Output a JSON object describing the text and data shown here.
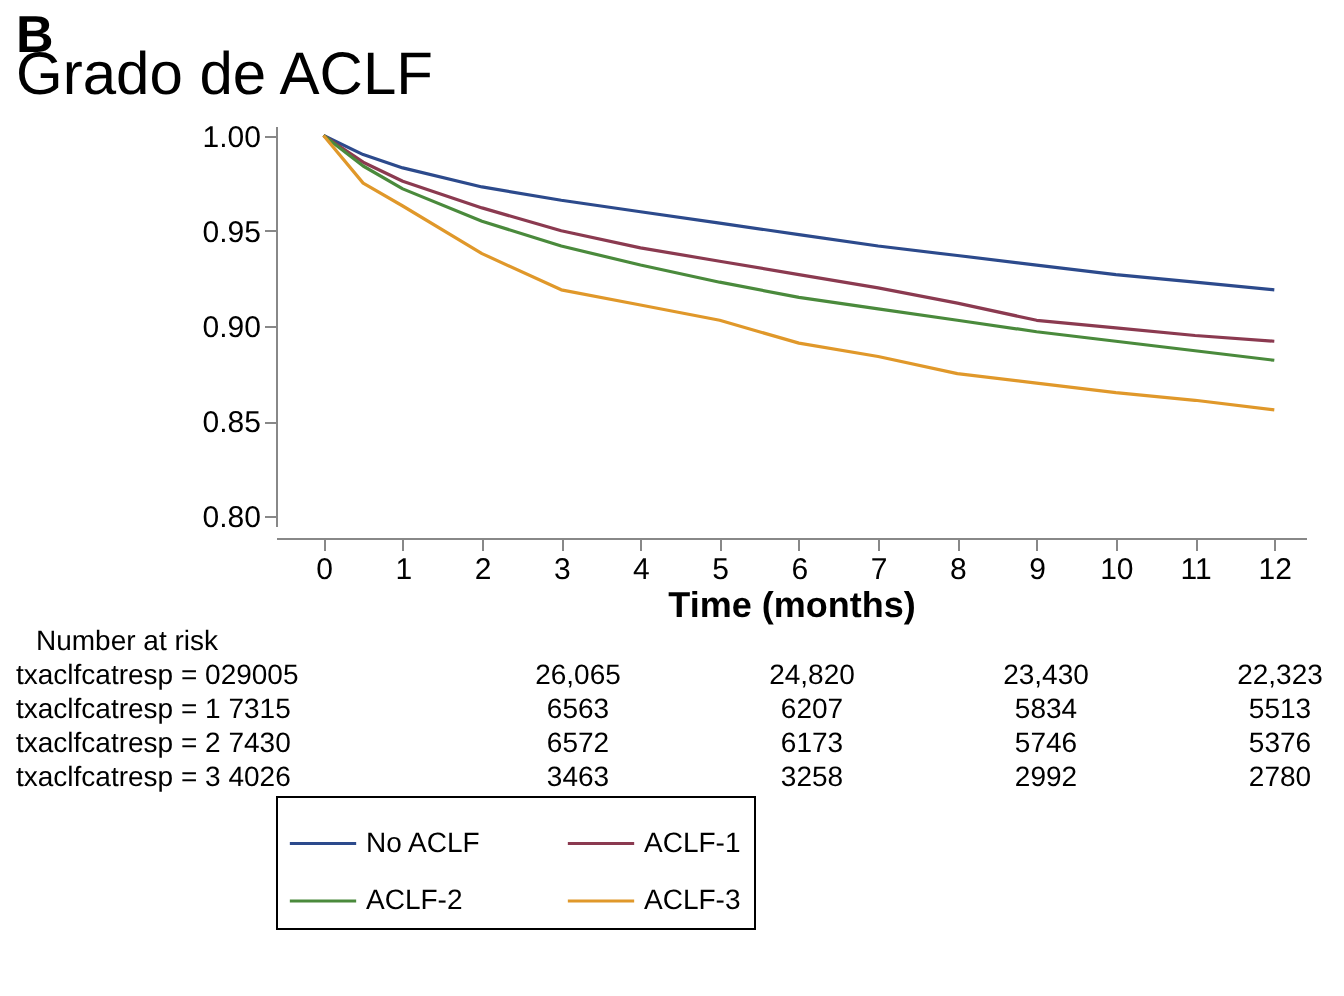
{
  "chart_data": {
    "type": "line",
    "title": "Grado de ACLF",
    "xlabel": "Time (months)",
    "x": [
      0,
      0.5,
      1,
      2,
      3,
      4,
      5,
      6,
      7,
      8,
      9,
      10,
      11,
      12
    ],
    "series": [
      {
        "name": "No ACLF",
        "color": "#2c4a8c",
        "values": [
          1,
          0.99,
          0.983,
          0.973,
          0.966,
          0.96,
          0.954,
          0.948,
          0.942,
          0.937,
          0.932,
          0.927,
          0.923,
          0.919
        ]
      },
      {
        "name": "ACLF-1",
        "color": "#8b3a50",
        "values": [
          1,
          0.986,
          0.976,
          0.962,
          0.95,
          0.941,
          0.934,
          0.927,
          0.92,
          0.912,
          0.903,
          0.899,
          0.895,
          0.892
        ]
      },
      {
        "name": "ACLF-2",
        "color": "#4a8a3c",
        "values": [
          1,
          0.984,
          0.972,
          0.955,
          0.942,
          0.932,
          0.923,
          0.915,
          0.909,
          0.903,
          0.897,
          0.892,
          0.887,
          0.882
        ]
      },
      {
        "name": "ACLF-3",
        "color": "#e0982a",
        "values": [
          1,
          0.975,
          0.963,
          0.938,
          0.919,
          0.911,
          0.903,
          0.891,
          0.884,
          0.875,
          0.87,
          0.865,
          0.861,
          0.856
        ]
      }
    ],
    "xlim": [
      -0.6,
      12.4
    ],
    "xticks": [
      0,
      1,
      2,
      3,
      4,
      5,
      6,
      7,
      8,
      9,
      10,
      11,
      12
    ],
    "ylim": [
      0.795,
      1.005
    ],
    "yticks": [
      {
        "value": 0.8,
        "label": "0.80"
      },
      {
        "value": 0.85,
        "label": "0.85"
      },
      {
        "value": 0.9,
        "label": "0.90"
      },
      {
        "value": 0.95,
        "label": "0.95"
      },
      {
        "value": 1,
        "label": "1.00"
      }
    ],
    "grid": false,
    "legend": "bottom",
    "annotations": [
      "B",
      "Number at risk",
      "txaclfcatresp = 029005",
      "26,065",
      "24,820",
      "23,430",
      "22,323",
      "txaclfcatresp = 1 7315",
      "6563",
      "6207",
      "5834",
      "5513",
      "txaclfcatresp = 2 7430",
      "6572",
      "6173",
      "5746",
      "5376",
      "txaclfcatresp = 3 4026",
      "3463",
      "3258",
      "2992",
      "2780"
    ]
  }
}
